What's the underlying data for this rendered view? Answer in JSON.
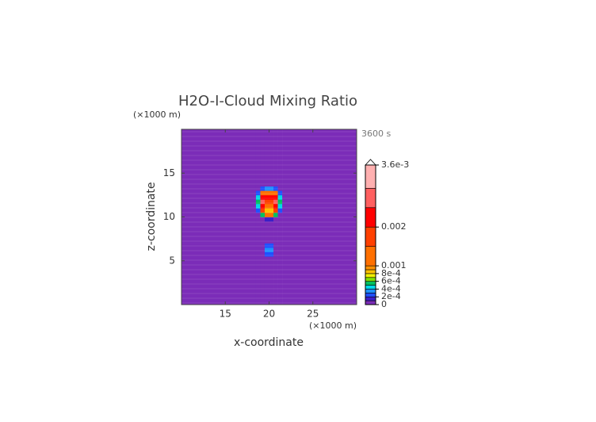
{
  "chart_data": {
    "type": "heatmap",
    "title": "H2O-I-Cloud Mixing Ratio",
    "time_label": "3600 s",
    "x_label": "x-coordinate",
    "y_label": "z-coordinate",
    "x_unit": "(×1000 m)",
    "y_unit": "(×1000 m)",
    "xlim": [
      10,
      30
    ],
    "ylim": [
      0,
      20
    ],
    "xticks": [
      15,
      20,
      25
    ],
    "yticks": [
      5,
      10,
      15
    ],
    "x_edges": [
      10,
      18.5,
      19,
      19.5,
      20,
      20.5,
      21,
      21.5,
      30
    ],
    "y_edges": [
      0,
      5.5,
      6,
      6.5,
      7,
      9.5,
      10,
      10.5,
      11,
      11.5,
      12,
      12.5,
      13,
      13.5,
      20
    ],
    "values": [
      [
        0,
        0,
        0,
        0,
        0,
        0,
        0,
        0
      ],
      [
        0,
        0,
        0,
        0.0002,
        0.0002,
        0,
        0,
        0
      ],
      [
        0,
        0,
        0,
        0.0003,
        0.0003,
        0,
        0,
        0
      ],
      [
        0,
        0,
        0,
        0.00025,
        0.00025,
        0,
        0,
        0
      ],
      [
        0,
        0,
        0,
        0,
        0,
        0,
        0,
        0
      ],
      [
        0,
        0,
        0,
        0.0001,
        0.0001,
        0,
        0,
        0
      ],
      [
        0,
        0,
        0.0005,
        0.001,
        0.001,
        0.0005,
        0,
        0
      ],
      [
        0,
        0.0002,
        0.0015,
        0.0008,
        0.0008,
        0.0015,
        0.0002,
        0
      ],
      [
        0,
        0.0004,
        0.0022,
        0.0012,
        0.0012,
        0.0022,
        0.0004,
        0
      ],
      [
        0,
        0.0005,
        0.0026,
        0.0015,
        0.0015,
        0.0026,
        0.0005,
        0
      ],
      [
        0,
        0.0004,
        0.0021,
        0.002,
        0.002,
        0.0021,
        0.0004,
        0
      ],
      [
        0,
        0.0002,
        0.001,
        0.0013,
        0.0013,
        0.001,
        0.0002,
        0
      ],
      [
        0,
        0,
        0.0002,
        0.0003,
        0.0003,
        0.0002,
        0,
        0
      ],
      [
        0,
        0,
        0,
        0,
        0,
        0,
        0,
        0
      ]
    ],
    "colorbar": {
      "levels": [
        0,
        0.0001,
        0.0002,
        0.0003,
        0.0004,
        0.0005,
        0.0006,
        0.0007,
        0.0008,
        0.0009,
        0.001,
        0.0015,
        0.002,
        0.0025,
        0.003,
        0.0036
      ],
      "colors": [
        "#7b2cb8",
        "#3a1fc8",
        "#2050ff",
        "#1e90ff",
        "#00d8e8",
        "#00c060",
        "#80e000",
        "#f0f000",
        "#ffc000",
        "#ff9000",
        "#ff7000",
        "#ff4000",
        "#ff0000",
        "#ff6060",
        "#ffb0b0"
      ],
      "lim": [
        0,
        0.0036
      ],
      "ticks": [
        0,
        {
          "value": 0.0002,
          "label": "2e-4"
        },
        {
          "value": 0.0004,
          "label": "4e-4"
        },
        {
          "value": 0.0006,
          "label": "6e-4"
        },
        {
          "value": 0.0008,
          "label": "8e-4"
        },
        0.001,
        0.002,
        {
          "value": 0.0036,
          "label": "3.6e-3"
        }
      ]
    }
  }
}
